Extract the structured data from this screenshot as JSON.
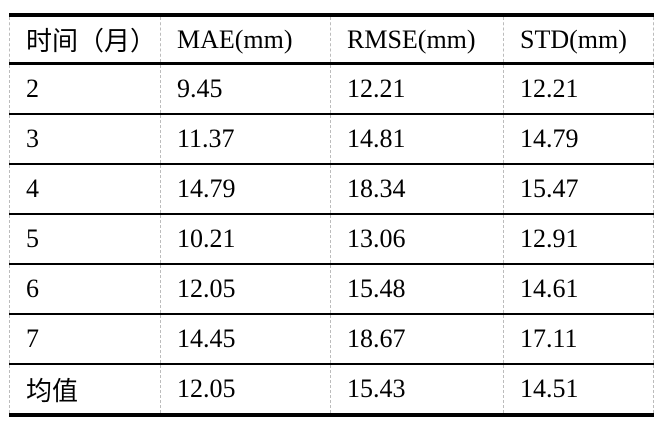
{
  "table": {
    "columns": [
      "时间（月）",
      "MAE(mm)",
      "RMSE(mm)",
      "STD(mm)"
    ],
    "rows": [
      [
        "2",
        "9.45",
        "12.21",
        "12.21"
      ],
      [
        "3",
        "11.37",
        "14.81",
        "14.79"
      ],
      [
        "4",
        "14.79",
        "18.34",
        "15.47"
      ],
      [
        "5",
        "10.21",
        "13.06",
        "12.91"
      ],
      [
        "6",
        "12.05",
        "15.48",
        "14.61"
      ],
      [
        "7",
        "14.45",
        "18.67",
        "17.11"
      ],
      [
        "均值",
        "12.05",
        "15.43",
        "14.51"
      ]
    ]
  },
  "colors": {
    "rule": "#000000",
    "gridline": "#bcbcbc",
    "background": "#ffffff",
    "text": "#000000"
  }
}
